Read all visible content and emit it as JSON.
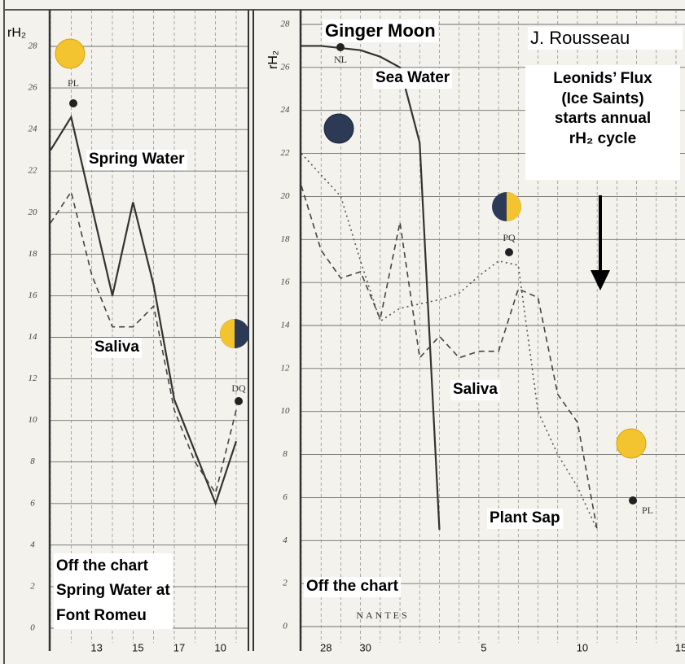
{
  "chart_data": [
    {
      "type": "line",
      "y_label": "rH₂",
      "categories": [
        null,
        null,
        "13",
        null,
        "15",
        null,
        "17",
        null,
        "10",
        null
      ],
      "series": [
        {
          "name": "Spring Water",
          "color": "#333333",
          "style": "solid",
          "values": [
            23,
            24.6,
            20.3,
            16,
            20.5,
            16.5,
            11,
            8.5,
            6,
            9
          ]
        },
        {
          "name": "Saliva",
          "color": "#444444",
          "style": "dashed",
          "values": [
            19.5,
            21,
            17,
            14.5,
            14.5,
            15.5,
            10.5,
            8,
            6.5,
            10.5
          ]
        }
      ],
      "ylim": [
        0,
        28
      ],
      "yticks": [
        0,
        2,
        4,
        6,
        8,
        10,
        12,
        14,
        16,
        18,
        20,
        22,
        24,
        26,
        28
      ],
      "grid": true,
      "annotations": [
        "PL",
        "DQ"
      ],
      "note": [
        "Off the chart",
        "Spring Water at",
        "Font Romeu"
      ]
    },
    {
      "type": "line",
      "title": "Ginger Moon",
      "author": "J. Rousseau",
      "y_label": "rH₂",
      "location": "NANTES",
      "callout": [
        "Leonids’ Flux",
        "(Ice Saints)",
        "starts annual",
        "rH₂ cycle"
      ],
      "categories": [
        null,
        "28",
        null,
        "30",
        null,
        null,
        null,
        null,
        null,
        "5",
        null,
        null,
        null,
        null,
        "10",
        null,
        null,
        null,
        null,
        "15"
      ],
      "series": [
        {
          "name": "Sea Water",
          "color": "#333333",
          "style": "solid",
          "values": [
            27,
            27,
            26.9,
            26.8,
            26.5,
            26,
            22.5,
            4.5,
            null,
            null,
            null,
            null,
            null,
            null,
            null,
            null,
            null,
            null,
            null,
            null
          ]
        },
        {
          "name": "Saliva",
          "color": "#444444",
          "style": "dashed",
          "values": [
            20.5,
            17.5,
            16.2,
            16.5,
            14.3,
            18.8,
            12.5,
            13.5,
            12.5,
            12.8,
            12.8,
            15.7,
            15.3,
            10.8,
            9.5,
            4.5,
            null,
            null,
            null,
            null
          ]
        },
        {
          "name": "Plant Sap",
          "color": "#555555",
          "style": "dotted",
          "values": [
            22,
            21,
            20,
            17,
            14.2,
            14.8,
            15,
            15.2,
            15.5,
            16.3,
            17,
            16.8,
            10,
            8,
            6.5,
            4.5,
            null,
            null,
            null,
            null
          ]
        }
      ],
      "ylim": [
        0,
        28
      ],
      "yticks": [
        0,
        2,
        4,
        6,
        8,
        10,
        12,
        14,
        16,
        18,
        20,
        22,
        24,
        26,
        28
      ],
      "grid": true,
      "annotations": [
        "NL",
        "PQ",
        "PL"
      ],
      "note": "Off the chart"
    }
  ]
}
